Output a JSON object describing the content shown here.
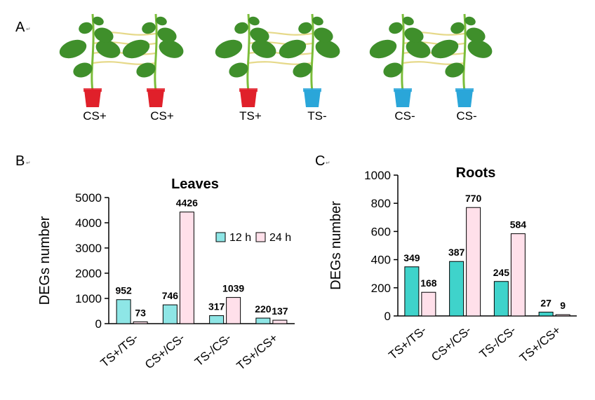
{
  "panels": {
    "a": {
      "label": "A",
      "mark": "↵"
    },
    "b": {
      "label": "B",
      "mark": "↵"
    },
    "c": {
      "label": "C",
      "mark": "↵"
    }
  },
  "plants": {
    "labels": [
      "CS+",
      "CS+",
      "TS+",
      "TS-",
      "CS-",
      "CS-"
    ],
    "pot_colors": [
      "#e0202a",
      "#e0202a",
      "#e0202a",
      "#2aa6d9",
      "#2aa6d9",
      "#2aa6d9"
    ]
  },
  "colors": {
    "series_12h": "#8ee6e6",
    "series_24h": "#ffe0ea",
    "roots_12h": "#3fd3cb",
    "roots_24h": "#ffe0ea",
    "stem": "#7bbd3a",
    "leaf": "#3f8f2b",
    "tendril": "#e6d98a"
  },
  "chart_data": [
    {
      "type": "bar",
      "title": "Leaves",
      "ylabel": "DEGs number",
      "xlabel": "",
      "categories": [
        "TS+/TS-",
        "CS+/CS-",
        "TS-/CS-",
        "TS+/CS+"
      ],
      "series": [
        {
          "name": "12 h",
          "values": [
            952,
            746,
            317,
            220
          ]
        },
        {
          "name": "24 h",
          "values": [
            73,
            4426,
            1039,
            137
          ]
        }
      ],
      "ylim": [
        0,
        5000
      ],
      "yticks": [
        "0",
        "1000",
        "2000",
        "3000",
        "4000",
        "5000"
      ],
      "data_labels": [
        [
          "952",
          "746",
          "317",
          "220"
        ],
        [
          "73",
          "4426",
          "1039",
          "137"
        ]
      ],
      "legend": "inside-right"
    },
    {
      "type": "bar",
      "title": "Roots",
      "ylabel": "DEGs number",
      "xlabel": "",
      "categories": [
        "TS+/TS-",
        "CS+/CS-",
        "TS-/CS-",
        "TS+/CS+"
      ],
      "series": [
        {
          "values": [
            349,
            387,
            245,
            27
          ]
        },
        {
          "values": [
            168,
            770,
            584,
            9
          ]
        }
      ],
      "ylim": [
        0,
        1000
      ],
      "yticks": [
        "0",
        "200",
        "400",
        "600",
        "800",
        "1000"
      ],
      "data_labels": [
        [
          "349",
          "387",
          "245",
          "27"
        ],
        [
          "168",
          "770",
          "584",
          "9"
        ]
      ],
      "legend": "none"
    }
  ]
}
